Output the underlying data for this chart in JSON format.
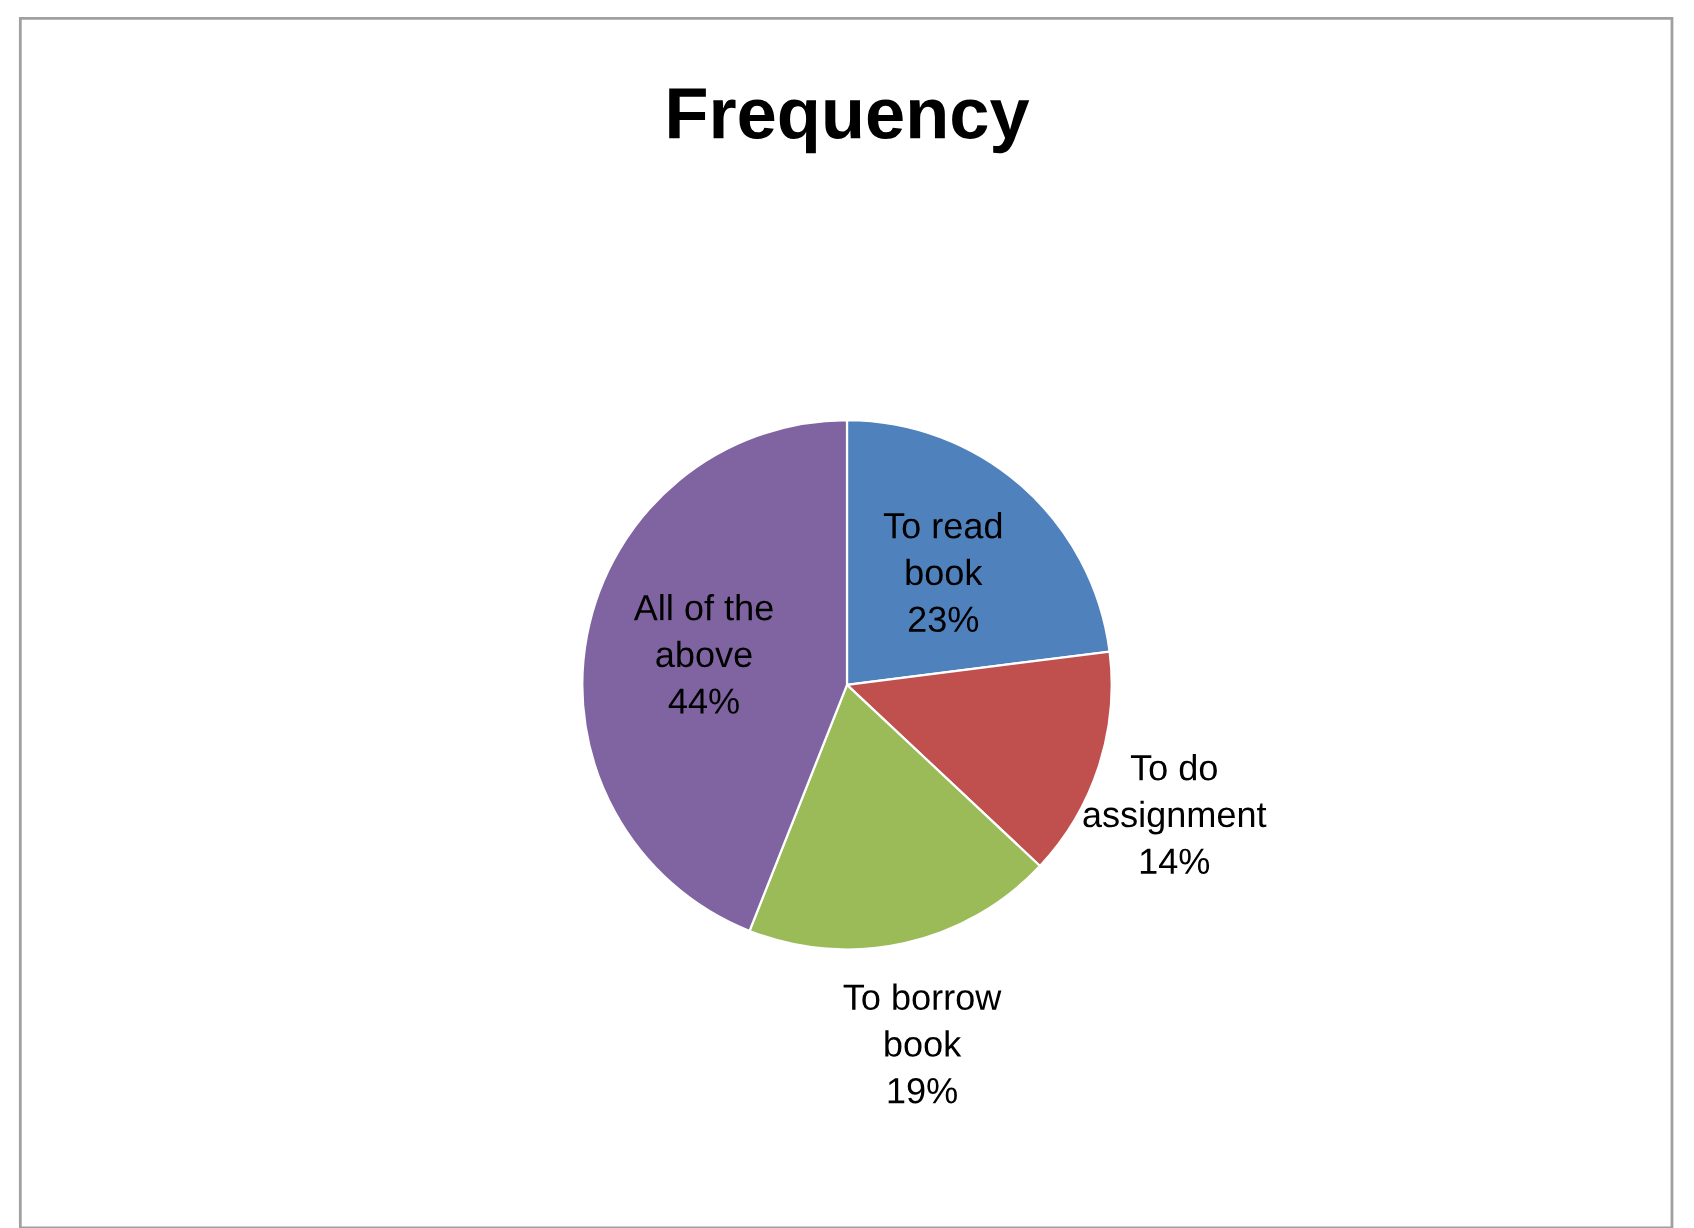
{
  "chart_data": {
    "type": "pie",
    "title": "Frequency",
    "categories": [
      "To read book",
      "To do assignment",
      "To borrow book",
      "All of the above"
    ],
    "values": [
      23,
      14,
      19,
      44
    ],
    "value_labels": [
      "23%",
      "14%",
      "19%",
      "44%"
    ],
    "colors": [
      "#4f81bd",
      "#c0504d",
      "#9bbb59",
      "#8064a2"
    ],
    "legend": false
  }
}
